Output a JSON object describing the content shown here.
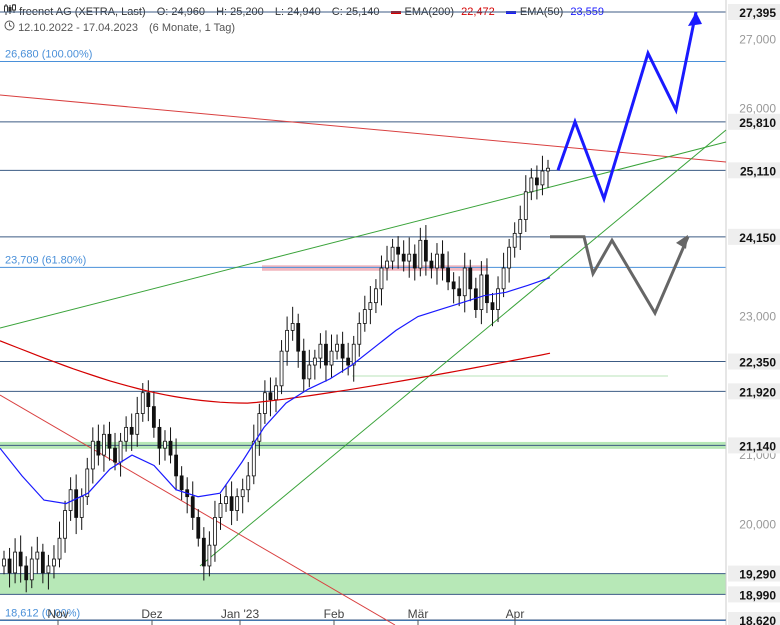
{
  "header": {
    "title": "freenet AG (XETRA, Last)",
    "ohlc": {
      "open": "O: 24,960",
      "high": "H: 25,200",
      "low": "L: 24,940",
      "close": "C: 25,140"
    },
    "ema200": {
      "label": "EMA(200)",
      "value": "22,472",
      "color": "#d40000"
    },
    "ema50": {
      "label": "EMA(50)",
      "value": "23,559",
      "color": "#1a1aff"
    },
    "range": "12.10.2022 - 17.04.2023",
    "range_detail": "(6 Monate, 1 Tag)",
    "chart_icon": "candlestick-icon",
    "clock_icon": "clock-icon"
  },
  "chart_data": {
    "type": "candlestick",
    "ylim": [
      18.62,
      27.7
    ],
    "y_ticks": [
      "20,000",
      "21,000",
      "23,000",
      "26,000",
      "27,000"
    ],
    "x_labels": [
      "Nov",
      "Dez",
      "Jan '23",
      "Feb",
      "Mär",
      "Apr"
    ],
    "fib_levels": [
      {
        "label": "26,680 (100.00%)",
        "value": 26.68
      },
      {
        "label": "23,709 (61.80%)",
        "value": 23.709
      },
      {
        "label": "18,612 (0.00%)",
        "value": 18.612
      }
    ],
    "horizontal_levels": [
      {
        "label": "27,395",
        "value": 27.395
      },
      {
        "label": "25,810",
        "value": 25.81
      },
      {
        "label": "25,110",
        "value": 25.11
      },
      {
        "label": "24,150",
        "value": 24.15
      },
      {
        "label": "22,350",
        "value": 22.35
      },
      {
        "label": "21,920",
        "value": 21.92
      },
      {
        "label": "21,140",
        "value": 21.14
      },
      {
        "label": "19,290",
        "value": 19.29
      },
      {
        "label": "18,990",
        "value": 18.99
      },
      {
        "label": "18,620",
        "value": 18.62
      }
    ],
    "zones": [
      {
        "from": 18.99,
        "to": 19.29,
        "color": "#b7e8b7"
      },
      {
        "from": 21.09,
        "to": 21.19,
        "color": "#b7e8b7"
      },
      {
        "from": 23.66,
        "to": 23.74,
        "color": "#f2b8c0"
      }
    ],
    "candles_close": [
      19.5,
      19.3,
      19.6,
      19.4,
      19.2,
      19.5,
      19.6,
      19.3,
      19.4,
      19.5,
      19.8,
      20.2,
      20.5,
      20.1,
      20.4,
      20.8,
      21.2,
      21.0,
      21.3,
      21.1,
      20.9,
      21.2,
      21.4,
      21.3,
      21.6,
      21.9,
      21.7,
      21.4,
      21.1,
      21.2,
      21.0,
      20.7,
      20.5,
      20.4,
      20.1,
      19.8,
      19.4,
      19.7,
      20.1,
      20.3,
      20.4,
      20.2,
      20.4,
      20.5,
      20.7,
      21.2,
      21.6,
      21.9,
      21.8,
      22.0,
      22.5,
      22.8,
      22.9,
      22.5,
      22.1,
      22.3,
      22.4,
      22.6,
      22.3,
      22.5,
      22.6,
      22.4,
      22.3,
      22.6,
      22.9,
      23.1,
      23.2,
      23.4,
      23.7,
      23.8,
      24.0,
      23.9,
      23.8,
      23.9,
      23.7,
      24.1,
      23.8,
      23.7,
      23.9,
      23.7,
      23.5,
      23.4,
      23.3,
      23.7,
      23.4,
      23.1,
      23.6,
      23.2,
      23.1,
      23.4,
      23.7,
      24.0,
      24.2,
      24.4,
      24.8,
      25.0,
      24.9,
      25.1,
      25.14
    ],
    "ema200_start": 22.65,
    "ema200_end": 22.47,
    "ema50_start": 21.15,
    "ema50_end": 23.56,
    "forecast_blue": [
      25.11,
      25.81,
      24.7,
      26.8,
      25.98,
      27.395
    ],
    "forecast_gray": [
      24.15,
      24.15,
      23.62,
      24.1,
      23.05,
      24.15
    ]
  }
}
